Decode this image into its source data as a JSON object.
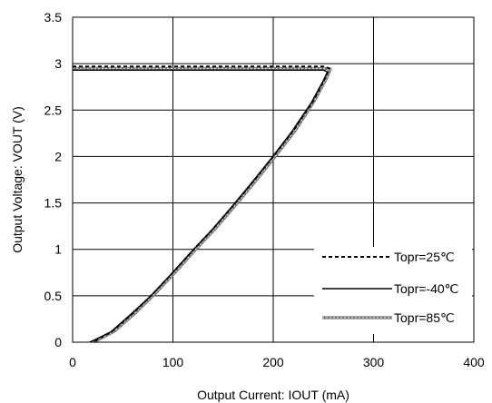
{
  "chart_data": {
    "type": "line",
    "title": "",
    "xlabel": "Output Current: IOUT (mA)",
    "ylabel": "Output Voltage: VOUT (V)",
    "xlim": [
      0,
      400
    ],
    "ylim": [
      0,
      3.5
    ],
    "xticks": [
      0,
      100,
      200,
      300,
      400
    ],
    "xtick_labels": [
      "0",
      "100",
      "200",
      "300",
      "400"
    ],
    "yticks": [
      0,
      0.5,
      1,
      1.5,
      2,
      2.5,
      3,
      3.5
    ],
    "ytick_labels": [
      "0",
      "0.5",
      "1",
      "1.5",
      "2",
      "2.5",
      "3",
      "3.5"
    ],
    "grid": true,
    "legend_position": "bottom-right",
    "series": [
      {
        "name": "Topr=25℃",
        "style": "dashed",
        "color": "#000000",
        "x": [
          0,
          100,
          200,
          250,
          256,
          252,
          240,
          220,
          200,
          180,
          160,
          140,
          120,
          100,
          80,
          60,
          40,
          20
        ],
        "y": [
          2.97,
          2.97,
          2.97,
          2.97,
          2.95,
          2.85,
          2.6,
          2.28,
          2.0,
          1.73,
          1.47,
          1.22,
          0.99,
          0.75,
          0.52,
          0.31,
          0.12,
          0.0
        ]
      },
      {
        "name": "Topr=-40℃",
        "style": "solid",
        "color": "#000000",
        "x": [
          0,
          100,
          200,
          250,
          254,
          250,
          238,
          218,
          198,
          178,
          158,
          138,
          118,
          98,
          78,
          58,
          38,
          17
        ],
        "y": [
          2.93,
          2.93,
          2.93,
          2.93,
          2.91,
          2.82,
          2.58,
          2.26,
          1.98,
          1.71,
          1.45,
          1.2,
          0.97,
          0.73,
          0.5,
          0.3,
          0.11,
          0.0
        ]
      },
      {
        "name": "Topr=85℃",
        "style": "solid-thick-gray",
        "color": "#777777",
        "x": [
          0,
          100,
          200,
          250,
          257,
          253,
          241,
          222,
          202,
          182,
          162,
          142,
          122,
          102,
          82,
          62,
          42,
          21
        ],
        "y": [
          2.95,
          2.95,
          2.95,
          2.95,
          2.94,
          2.84,
          2.6,
          2.28,
          2.0,
          1.73,
          1.47,
          1.22,
          0.99,
          0.75,
          0.52,
          0.31,
          0.12,
          0.0
        ]
      }
    ]
  }
}
